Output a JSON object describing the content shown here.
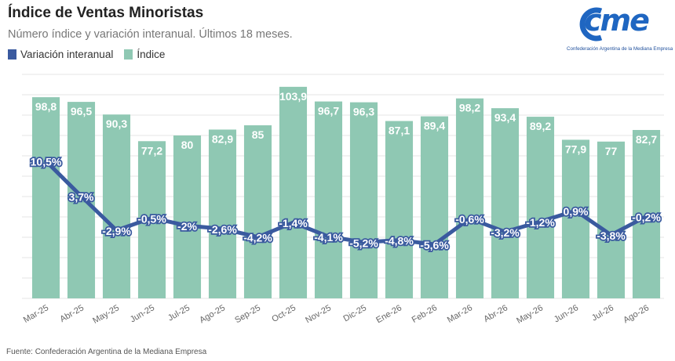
{
  "title": "Índice de Ventas Minoristas",
  "subtitle": "Número índice y variación interanual. Últimos 18 meses.",
  "legend": {
    "line_label": "Variación interanual",
    "bar_label": "Índice"
  },
  "logo": {
    "word": "cme",
    "caption": "Confederación Argentina de la Mediana Empresa"
  },
  "source": "Fuente: Confederación Argentina de la Mediana Empresa",
  "colors": {
    "bar": "#8fc8b3",
    "line": "#3a5a9f",
    "label_text": "#ffffff",
    "grid": "#e6e6e6",
    "axis_text": "#666666"
  },
  "chart_data": {
    "type": "bar",
    "categories": [
      "Mar-25",
      "Abr-25",
      "May-25",
      "Jun-25",
      "Jul-25",
      "Ago-25",
      "Sep-25",
      "Oct-25",
      "Nov-25",
      "Dic-25",
      "Ene-26",
      "Feb-26",
      "Mar-26",
      "Abr-26",
      "May-26",
      "Jun-26",
      "Jul-26",
      "Ago-26"
    ],
    "series": [
      {
        "name": "Índice",
        "type": "bar",
        "values": [
          98.8,
          96.5,
          90.3,
          77.2,
          80,
          82.9,
          85,
          103.9,
          96.7,
          96.3,
          87.1,
          89.4,
          98.2,
          93.4,
          89.2,
          77.9,
          77,
          82.7
        ],
        "labels": [
          "98,8",
          "96,5",
          "90,3",
          "77,2",
          "80",
          "82,9",
          "85",
          "103,9",
          "96,7",
          "96,3",
          "87,1",
          "89,4",
          "98,2",
          "93,4",
          "89,2",
          "77,9",
          "77",
          "82,7"
        ]
      },
      {
        "name": "Variación interanual",
        "type": "line",
        "values": [
          10.5,
          3.7,
          -2.9,
          -0.5,
          -2,
          -2.6,
          -4.2,
          -1.4,
          -4.1,
          -5.2,
          -4.8,
          -5.6,
          -0.6,
          -3.2,
          -1.2,
          0.9,
          -3.8,
          -0.2
        ],
        "labels": [
          "10,5%",
          "3,7%",
          "-2,9%",
          "-0,5%",
          "-2%",
          "-2,6%",
          "-4,2%",
          "-1,4%",
          "-4,1%",
          "-5,2%",
          "-4,8%",
          "-5,6%",
          "-0,6%",
          "-3,2%",
          "-1,2%",
          "0,9%",
          "-3,8%",
          "-0,2%"
        ]
      }
    ],
    "grid": true,
    "legend_position": "top-left"
  }
}
